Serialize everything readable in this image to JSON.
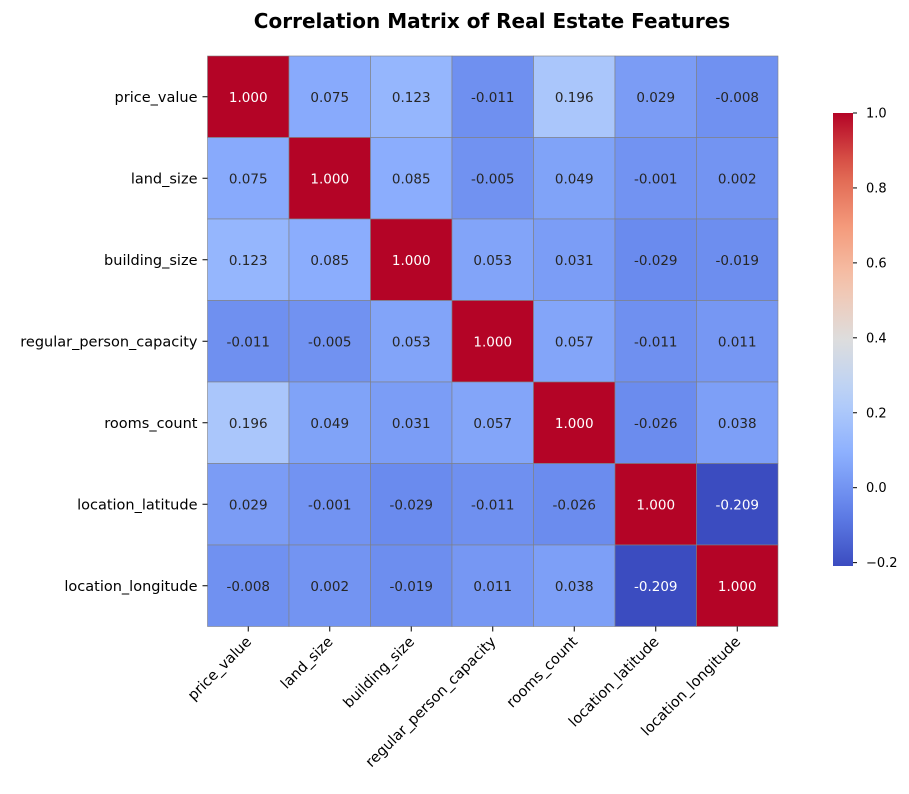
{
  "chart_data": {
    "type": "heatmap",
    "title": "Correlation Matrix of Real Estate Features",
    "row_labels": [
      "price_value",
      "land_size",
      "building_size",
      "regular_person_capacity",
      "rooms_count",
      "location_latitude",
      "location_longitude"
    ],
    "col_labels": [
      "price_value",
      "land_size",
      "building_size",
      "regular_person_capacity",
      "rooms_count",
      "location_latitude",
      "location_longitude"
    ],
    "values": [
      [
        1.0,
        0.075,
        0.123,
        -0.011,
        0.196,
        0.029,
        -0.008
      ],
      [
        0.075,
        1.0,
        0.085,
        -0.005,
        0.049,
        -0.001,
        0.002
      ],
      [
        0.123,
        0.085,
        1.0,
        0.053,
        0.031,
        -0.029,
        -0.019
      ],
      [
        -0.011,
        -0.005,
        0.053,
        1.0,
        0.057,
        -0.011,
        0.011
      ],
      [
        0.196,
        0.049,
        0.031,
        0.057,
        1.0,
        -0.026,
        0.038
      ],
      [
        0.029,
        -0.001,
        -0.029,
        -0.011,
        -0.026,
        1.0,
        -0.209
      ],
      [
        -0.008,
        0.002,
        -0.019,
        0.011,
        0.038,
        -0.209,
        1.0
      ]
    ],
    "cell_labels": [
      [
        "1.000",
        "0.075",
        "0.123",
        "-0.011",
        "0.196",
        "0.029",
        "-0.008"
      ],
      [
        "0.075",
        "1.000",
        "0.085",
        "-0.005",
        "0.049",
        "-0.001",
        "0.002"
      ],
      [
        "0.123",
        "0.085",
        "1.000",
        "0.053",
        "0.031",
        "-0.029",
        "-0.019"
      ],
      [
        "-0.011",
        "-0.005",
        "0.053",
        "1.000",
        "0.057",
        "-0.011",
        "0.011"
      ],
      [
        "0.196",
        "0.049",
        "0.031",
        "0.057",
        "1.000",
        "-0.026",
        "0.038"
      ],
      [
        "0.029",
        "-0.001",
        "-0.029",
        "-0.011",
        "-0.026",
        "1.000",
        "-0.209"
      ],
      [
        "-0.008",
        "0.002",
        "-0.019",
        "0.011",
        "0.038",
        "-0.209",
        "1.000"
      ]
    ],
    "colormap": "coolwarm",
    "color_range": [
      -0.209,
      1.0
    ],
    "colorbar": {
      "ticks": [
        1.0,
        0.8,
        0.6,
        0.4,
        0.2,
        0.0,
        -0.2
      ],
      "tick_labels": [
        "1.0",
        "0.8",
        "0.6",
        "0.4",
        "0.2",
        "0.0",
        "−0.2"
      ]
    },
    "grid_line_color": "#808080"
  }
}
